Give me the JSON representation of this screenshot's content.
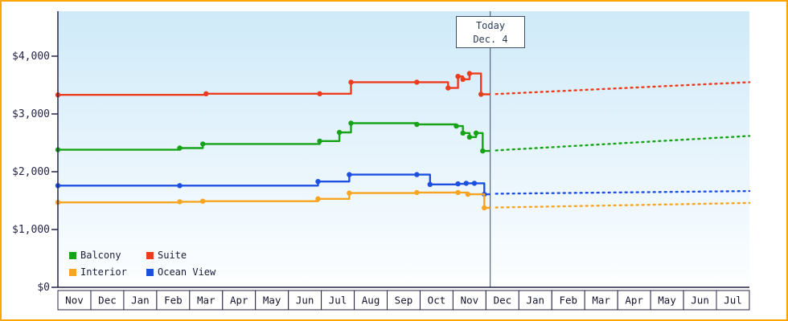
{
  "frame": {
    "border_color": "#ffa500",
    "background": "#ffffff"
  },
  "today_marker": {
    "label": "Today",
    "date": "Dec. 4"
  },
  "legend": [
    {
      "label": "Balcony",
      "color": "#17a317"
    },
    {
      "label": "Suite",
      "color": "#ee3a1d"
    },
    {
      "label": "Interior",
      "color": "#f7a420"
    },
    {
      "label": "Ocean View",
      "color": "#1d4fe1"
    }
  ],
  "chart_data": {
    "type": "line",
    "title": "",
    "ylabel": "",
    "ylim": [
      0,
      4777
    ],
    "grid": false,
    "legend_position": "bottom-left-inside",
    "yticks": [
      {
        "value": 0,
        "label": "$0"
      },
      {
        "value": 1000,
        "label": "$1,000"
      },
      {
        "value": 2000,
        "label": "$2,000"
      },
      {
        "value": 3000,
        "label": "$3,000"
      },
      {
        "value": 4000,
        "label": "$4,000"
      }
    ],
    "x_months": [
      "Nov",
      "Dec",
      "Jan",
      "Feb",
      "Mar",
      "Apr",
      "May",
      "Jun",
      "Jul",
      "Aug",
      "Sep",
      "Oct",
      "Nov",
      "Dec",
      "Jan",
      "Feb",
      "Mar",
      "Apr",
      "May",
      "Jun",
      "Jul"
    ],
    "today": {
      "label": "Today",
      "date": "Dec. 4",
      "x_months_from_start": 13.13
    },
    "series": [
      {
        "name": "Suite",
        "color": "#ee3a1d",
        "points": [
          [
            0,
            3330
          ],
          [
            4.5,
            3350
          ],
          [
            7.95,
            3350
          ],
          [
            8.9,
            3550
          ],
          [
            10.9,
            3550
          ],
          [
            11.85,
            3450
          ],
          [
            12.15,
            3650
          ],
          [
            12.3,
            3600
          ],
          [
            12.5,
            3700
          ],
          [
            12.85,
            3340
          ],
          [
            13.13,
            3340
          ]
        ],
        "projection": [
          [
            13.3,
            3345
          ],
          [
            21,
            3550
          ]
        ]
      },
      {
        "name": "Balcony",
        "color": "#17a317",
        "points": [
          [
            0,
            2380
          ],
          [
            3.7,
            2410
          ],
          [
            4.4,
            2480
          ],
          [
            7.95,
            2530
          ],
          [
            8.55,
            2680
          ],
          [
            8.9,
            2840
          ],
          [
            10.9,
            2820
          ],
          [
            12.1,
            2790
          ],
          [
            12.3,
            2670
          ],
          [
            12.5,
            2600
          ],
          [
            12.7,
            2670
          ],
          [
            12.9,
            2360
          ],
          [
            13.13,
            2360
          ]
        ],
        "projection": [
          [
            13.3,
            2370
          ],
          [
            21,
            2620
          ]
        ]
      },
      {
        "name": "Ocean View",
        "color": "#1d4fe1",
        "points": [
          [
            0,
            1760
          ],
          [
            3.7,
            1760
          ],
          [
            7.9,
            1830
          ],
          [
            8.85,
            1950
          ],
          [
            10.9,
            1950
          ],
          [
            11.3,
            1780
          ],
          [
            12.15,
            1790
          ],
          [
            12.4,
            1800
          ],
          [
            12.65,
            1800
          ],
          [
            12.95,
            1610
          ],
          [
            13.13,
            1610
          ]
        ],
        "projection": [
          [
            13.3,
            1620
          ],
          [
            21,
            1665
          ]
        ]
      },
      {
        "name": "Interior",
        "color": "#f7a420",
        "points": [
          [
            0,
            1470
          ],
          [
            3.7,
            1480
          ],
          [
            4.4,
            1490
          ],
          [
            7.9,
            1530
          ],
          [
            8.85,
            1630
          ],
          [
            10.9,
            1640
          ],
          [
            12.15,
            1640
          ],
          [
            12.45,
            1610
          ],
          [
            12.95,
            1375
          ],
          [
            13.13,
            1375
          ]
        ],
        "projection": [
          [
            13.3,
            1380
          ],
          [
            21,
            1460
          ]
        ]
      }
    ]
  }
}
